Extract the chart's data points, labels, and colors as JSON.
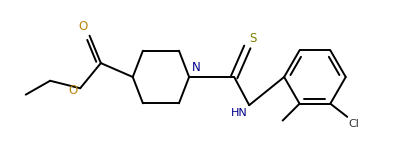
{
  "bg_color": "#ffffff",
  "line_color": "#000000",
  "N_color": "#00008b",
  "O_color": "#b8860b",
  "S_color": "#808000",
  "Cl_color": "#333333",
  "line_width": 1.4,
  "figsize": [
    3.97,
    1.54
  ],
  "dpi": 100,
  "xlim": [
    0,
    10.5
  ],
  "ylim": [
    0,
    4.1
  ]
}
